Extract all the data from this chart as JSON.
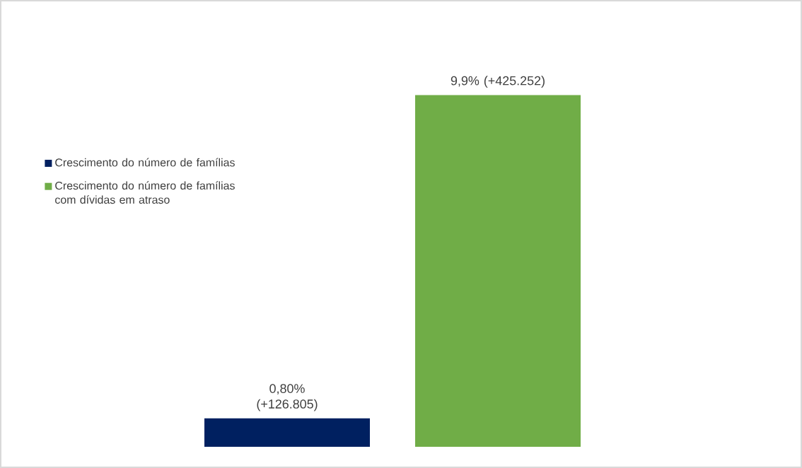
{
  "chart_data": {
    "type": "bar",
    "categories": [
      null
    ],
    "legend": "left",
    "series": [
      {
        "name": "Crescimento do número de famílias",
        "color": "#002060",
        "values": [
          0.8
        ],
        "value_labels": [
          "0,80% (+126.805)"
        ]
      },
      {
        "name": "Crescimento do número de famílias com dívidas em atraso",
        "color": "#70ad47",
        "values": [
          9.9
        ],
        "value_labels": [
          "9,9% (+425.252)"
        ]
      }
    ]
  }
}
